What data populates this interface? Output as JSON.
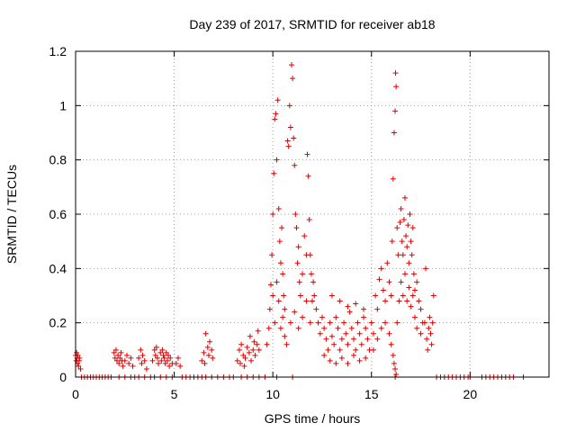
{
  "chart_data": {
    "type": "scatter",
    "title": "Day 239 of 2017, SRMTID for receiver ab18",
    "xlabel": "GPS time / hours",
    "ylabel": "SRMTID / TECUs",
    "xlim": [
      0,
      24
    ],
    "ylim": [
      0,
      1.2
    ],
    "x_ticks": [
      0,
      5,
      10,
      15,
      20
    ],
    "x_tick_labels": [
      "0",
      "5",
      "10",
      "15",
      "20"
    ],
    "y_ticks": [
      0,
      0.2,
      0.4,
      0.6,
      0.8,
      1.0,
      1.2
    ],
    "y_tick_labels": [
      "0",
      "0.2",
      "0.4",
      "0.6",
      "0.8",
      "1",
      "1.2"
    ],
    "grid": true,
    "marker": "+",
    "color": "#dd0000",
    "series": [
      {
        "name": "SRMTID",
        "points": [
          [
            0.0,
            0.08
          ],
          [
            0.03,
            0.06
          ],
          [
            0.05,
            0.09
          ],
          [
            0.08,
            0.07
          ],
          [
            0.1,
            0.05
          ],
          [
            0.12,
            0.08
          ],
          [
            0.15,
            0.04
          ],
          [
            0.18,
            0.06
          ],
          [
            0.2,
            0.07
          ],
          [
            0.25,
            0.03
          ],
          [
            0.3,
            0.0
          ],
          [
            0.45,
            0.0
          ],
          [
            0.6,
            0.0
          ],
          [
            0.75,
            0.0
          ],
          [
            0.9,
            0.0
          ],
          [
            1.05,
            0.0
          ],
          [
            1.2,
            0.0
          ],
          [
            1.35,
            0.0
          ],
          [
            1.5,
            0.0
          ],
          [
            1.65,
            0.0
          ],
          [
            1.8,
            0.0
          ],
          [
            1.95,
            0.09
          ],
          [
            2.0,
            0.07
          ],
          [
            2.05,
            0.1
          ],
          [
            2.1,
            0.06
          ],
          [
            2.15,
            0.08
          ],
          [
            2.2,
            0.05
          ],
          [
            2.25,
            0.07
          ],
          [
            2.3,
            0.09
          ],
          [
            2.35,
            0.06
          ],
          [
            2.4,
            0.04
          ],
          [
            2.5,
            0.06
          ],
          [
            2.6,
            0.08
          ],
          [
            2.7,
            0.05
          ],
          [
            2.8,
            0.07
          ],
          [
            2.9,
            0.04
          ],
          [
            2.2,
            0.0
          ],
          [
            2.5,
            0.0
          ],
          [
            2.8,
            0.0
          ],
          [
            3.0,
            0.0
          ],
          [
            3.2,
            0.07
          ],
          [
            3.3,
            0.1
          ],
          [
            3.35,
            0.05
          ],
          [
            3.4,
            0.08
          ],
          [
            3.5,
            0.06
          ],
          [
            3.6,
            0.03
          ],
          [
            3.2,
            0.0
          ],
          [
            3.5,
            0.0
          ],
          [
            3.8,
            0.0
          ],
          [
            3.9,
            0.06
          ],
          [
            4.0,
            0.1
          ],
          [
            4.05,
            0.08
          ],
          [
            4.1,
            0.11
          ],
          [
            4.15,
            0.07
          ],
          [
            4.2,
            0.05
          ],
          [
            4.3,
            0.09
          ],
          [
            4.35,
            0.06
          ],
          [
            4.4,
            0.1
          ],
          [
            4.45,
            0.08
          ],
          [
            4.5,
            0.07
          ],
          [
            4.55,
            0.05
          ],
          [
            4.6,
            0.09
          ],
          [
            4.65,
            0.06
          ],
          [
            4.7,
            0.08
          ],
          [
            4.75,
            0.04
          ],
          [
            4.8,
            0.07
          ],
          [
            4.9,
            0.05
          ],
          [
            4.0,
            0.0
          ],
          [
            4.3,
            0.0
          ],
          [
            4.6,
            0.0
          ],
          [
            4.9,
            0.0
          ],
          [
            5.1,
            0.05
          ],
          [
            5.2,
            0.07
          ],
          [
            5.3,
            0.04
          ],
          [
            5.4,
            0.0
          ],
          [
            5.6,
            0.0
          ],
          [
            5.8,
            0.0
          ],
          [
            6.0,
            0.0
          ],
          [
            6.2,
            0.0
          ],
          [
            6.4,
            0.0
          ],
          [
            6.4,
            0.06
          ],
          [
            6.5,
            0.09
          ],
          [
            6.55,
            0.05
          ],
          [
            6.6,
            0.16
          ],
          [
            6.7,
            0.11
          ],
          [
            6.75,
            0.08
          ],
          [
            6.8,
            0.13
          ],
          [
            6.9,
            0.1
          ],
          [
            6.95,
            0.07
          ],
          [
            6.6,
            0.0
          ],
          [
            6.9,
            0.0
          ],
          [
            7.2,
            0.0
          ],
          [
            7.5,
            0.0
          ],
          [
            7.8,
            0.0
          ],
          [
            8.0,
            0.0
          ],
          [
            8.2,
            0.06
          ],
          [
            8.3,
            0.1
          ],
          [
            8.35,
            0.05
          ],
          [
            8.4,
            0.12
          ],
          [
            8.5,
            0.08
          ],
          [
            8.55,
            0.04
          ],
          [
            8.6,
            0.07
          ],
          [
            8.7,
            0.11
          ],
          [
            8.8,
            0.09
          ],
          [
            8.85,
            0.15
          ],
          [
            8.9,
            0.06
          ],
          [
            9.0,
            0.1
          ],
          [
            9.05,
            0.13
          ],
          [
            9.1,
            0.08
          ],
          [
            9.2,
            0.12
          ],
          [
            9.25,
            0.17
          ],
          [
            9.3,
            0.1
          ],
          [
            8.4,
            0.0
          ],
          [
            8.7,
            0.0
          ],
          [
            9.0,
            0.0
          ],
          [
            9.3,
            0.0
          ],
          [
            9.6,
            0.0
          ],
          [
            9.7,
            0.12
          ],
          [
            9.8,
            0.18
          ],
          [
            9.85,
            0.25
          ],
          [
            9.9,
            0.34
          ],
          [
            9.95,
            0.45
          ],
          [
            10.0,
            0.6
          ],
          [
            10.05,
            0.75
          ],
          [
            10.1,
            0.95
          ],
          [
            10.15,
            0.97
          ],
          [
            10.2,
            0.8
          ],
          [
            10.25,
            1.02
          ],
          [
            10.3,
            0.62
          ],
          [
            10.35,
            0.5
          ],
          [
            10.4,
            0.42
          ],
          [
            10.45,
            0.55
          ],
          [
            10.5,
            0.38
          ],
          [
            10.55,
            0.3
          ],
          [
            10.6,
            0.25
          ],
          [
            10.0,
            0.3
          ],
          [
            10.1,
            0.2
          ],
          [
            10.2,
            0.35
          ],
          [
            10.3,
            0.28
          ],
          [
            10.4,
            0.18
          ],
          [
            10.5,
            0.22
          ],
          [
            10.6,
            0.15
          ],
          [
            10.7,
            0.12
          ],
          [
            10.75,
            0.87
          ],
          [
            10.8,
            0.85
          ],
          [
            10.85,
            1.0
          ],
          [
            10.9,
            0.92
          ],
          [
            10.95,
            1.15
          ],
          [
            11.0,
            1.1
          ],
          [
            11.05,
            0.88
          ],
          [
            11.1,
            0.78
          ],
          [
            11.15,
            0.6
          ],
          [
            11.2,
            0.55
          ],
          [
            11.25,
            0.42
          ],
          [
            11.3,
            0.48
          ],
          [
            11.35,
            0.35
          ],
          [
            11.4,
            0.3
          ],
          [
            11.5,
            0.38
          ],
          [
            11.6,
            0.52
          ],
          [
            11.7,
            0.45
          ],
          [
            11.75,
            0.82
          ],
          [
            11.8,
            0.74
          ],
          [
            11.85,
            0.58
          ],
          [
            11.9,
            0.45
          ],
          [
            11.95,
            0.38
          ],
          [
            12.0,
            0.28
          ],
          [
            12.05,
            0.35
          ],
          [
            10.9,
            0.2
          ],
          [
            11.1,
            0.24
          ],
          [
            11.3,
            0.18
          ],
          [
            11.5,
            0.22
          ],
          [
            11.7,
            0.28
          ],
          [
            11.9,
            0.2
          ],
          [
            12.1,
            0.3
          ],
          [
            12.2,
            0.25
          ],
          [
            12.3,
            0.2
          ],
          [
            12.4,
            0.16
          ],
          [
            12.5,
            0.22
          ],
          [
            12.6,
            0.18
          ],
          [
            12.7,
            0.14
          ],
          [
            12.8,
            0.1
          ],
          [
            12.9,
            0.2
          ],
          [
            13.0,
            0.15
          ],
          [
            13.1,
            0.12
          ],
          [
            13.2,
            0.22
          ],
          [
            13.3,
            0.18
          ],
          [
            13.4,
            0.1
          ],
          [
            13.5,
            0.14
          ],
          [
            13.6,
            0.2
          ],
          [
            13.7,
            0.16
          ],
          [
            13.8,
            0.12
          ],
          [
            13.9,
            0.24
          ],
          [
            14.0,
            0.18
          ],
          [
            14.1,
            0.14
          ],
          [
            14.2,
            0.1
          ],
          [
            14.3,
            0.2
          ],
          [
            14.4,
            0.16
          ],
          [
            14.5,
            0.12
          ],
          [
            14.6,
            0.22
          ],
          [
            14.7,
            0.18
          ],
          [
            14.8,
            0.14
          ],
          [
            14.9,
            0.1
          ],
          [
            12.6,
            0.08
          ],
          [
            12.9,
            0.06
          ],
          [
            13.2,
            0.05
          ],
          [
            13.5,
            0.07
          ],
          [
            13.8,
            0.05
          ],
          [
            14.1,
            0.08
          ],
          [
            14.4,
            0.06
          ],
          [
            14.7,
            0.07
          ],
          [
            13.0,
            0.3
          ],
          [
            13.4,
            0.28
          ],
          [
            13.8,
            0.26
          ],
          [
            14.2,
            0.27
          ],
          [
            14.6,
            0.25
          ],
          [
            15.0,
            0.2
          ],
          [
            15.1,
            0.16
          ],
          [
            15.2,
            0.3
          ],
          [
            15.3,
            0.25
          ],
          [
            15.4,
            0.36
          ],
          [
            15.5,
            0.4
          ],
          [
            15.6,
            0.32
          ],
          [
            15.7,
            0.28
          ],
          [
            15.8,
            0.42
          ],
          [
            15.9,
            0.35
          ],
          [
            16.0,
            0.3
          ],
          [
            16.05,
            0.5
          ],
          [
            16.1,
            0.73
          ],
          [
            16.15,
            0.9
          ],
          [
            16.2,
            0.98
          ],
          [
            16.22,
            1.12
          ],
          [
            16.25,
            1.07
          ],
          [
            16.3,
            0.55
          ],
          [
            16.35,
            0.45
          ],
          [
            15.1,
            0.1
          ],
          [
            15.3,
            0.14
          ],
          [
            15.5,
            0.18
          ],
          [
            15.7,
            0.2
          ],
          [
            15.9,
            0.16
          ],
          [
            16.0,
            0.12
          ],
          [
            16.1,
            0.08
          ],
          [
            16.15,
            0.05
          ],
          [
            16.2,
            0.03
          ],
          [
            16.25,
            0.01
          ],
          [
            16.3,
            0.2
          ],
          [
            16.4,
            0.28
          ],
          [
            16.45,
            0.57
          ],
          [
            16.5,
            0.62
          ],
          [
            16.55,
            0.5
          ],
          [
            16.6,
            0.45
          ],
          [
            16.65,
            0.58
          ],
          [
            16.7,
            0.66
          ],
          [
            16.75,
            0.52
          ],
          [
            16.8,
            0.48
          ],
          [
            16.85,
            0.56
          ],
          [
            16.9,
            0.42
          ],
          [
            16.95,
            0.6
          ],
          [
            17.0,
            0.5
          ],
          [
            17.05,
            0.45
          ],
          [
            17.1,
            0.55
          ],
          [
            17.15,
            0.38
          ],
          [
            17.2,
            0.32
          ],
          [
            17.3,
            0.35
          ],
          [
            17.4,
            0.28
          ],
          [
            17.5,
            0.25
          ],
          [
            17.6,
            0.2
          ],
          [
            16.5,
            0.35
          ],
          [
            16.6,
            0.3
          ],
          [
            16.7,
            0.38
          ],
          [
            16.8,
            0.28
          ],
          [
            16.9,
            0.33
          ],
          [
            17.0,
            0.26
          ],
          [
            17.1,
            0.3
          ],
          [
            17.2,
            0.22
          ],
          [
            17.3,
            0.18
          ],
          [
            17.5,
            0.16
          ],
          [
            17.7,
            0.2
          ],
          [
            17.75,
            0.4
          ],
          [
            17.8,
            0.14
          ],
          [
            17.85,
            0.1
          ],
          [
            17.9,
            0.18
          ],
          [
            17.95,
            0.22
          ],
          [
            18.0,
            0.16
          ],
          [
            18.05,
            0.12
          ],
          [
            18.1,
            0.2
          ],
          [
            18.15,
            0.3
          ],
          [
            10.2,
            0.0
          ],
          [
            11.0,
            0.0
          ],
          [
            16.2,
            0.0
          ],
          [
            18.3,
            0.0
          ],
          [
            18.5,
            0.0
          ],
          [
            18.7,
            0.0
          ],
          [
            18.9,
            0.0
          ],
          [
            19.1,
            0.0
          ],
          [
            19.3,
            0.0
          ],
          [
            19.5,
            0.0
          ],
          [
            19.7,
            0.0
          ],
          [
            19.9,
            0.0
          ],
          [
            20.0,
            0.0
          ],
          [
            20.6,
            0.0
          ],
          [
            20.8,
            0.0
          ],
          [
            21.0,
            0.0
          ],
          [
            21.2,
            0.0
          ],
          [
            21.4,
            0.0
          ],
          [
            21.6,
            0.0
          ],
          [
            21.8,
            0.0
          ],
          [
            22.0,
            0.0
          ],
          [
            22.2,
            0.0
          ],
          [
            22.7,
            0.0
          ]
        ]
      }
    ]
  }
}
